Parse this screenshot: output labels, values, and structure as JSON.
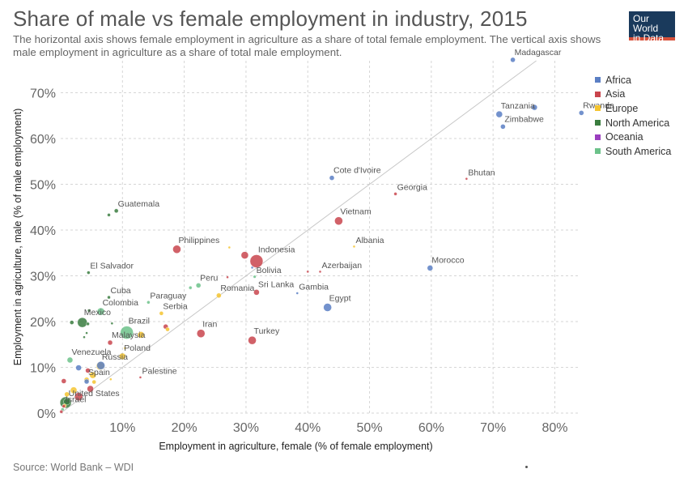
{
  "header": {
    "title": "Share of male vs female employment in industry, 2015",
    "subtitle": "The horizontal axis shows female employment in agriculture as a share of total female employment. The vertical axis shows male employment in agriculture as a share of total male employment.",
    "logo_line1": "Our World",
    "logo_line2": "in Data"
  },
  "footer": {
    "source": "Source: World Bank – WDI"
  },
  "colors": {
    "Africa": "#5b7fc4",
    "Asia": "#c9454d",
    "Europe": "#f4c430",
    "North America": "#3a7d3f",
    "Oceania": "#9b3fbf",
    "South America": "#6cc28a",
    "grid": "#d6d6d6",
    "diagonal": "#c8c8c8"
  },
  "chart_data": {
    "type": "scatter",
    "title": "Share of male vs female employment in industry, 2015",
    "xlabel": "Employment in agriculture, female (% of female employment)",
    "ylabel": "Employment in agriculture, male (% of male employment)",
    "xlim": [
      0,
      84
    ],
    "ylim": [
      0,
      77
    ],
    "x_ticks": [
      10,
      20,
      30,
      40,
      50,
      60,
      70,
      80
    ],
    "x_tick_labels": [
      "10%",
      "20%",
      "30%",
      "40%",
      "50%",
      "60%",
      "70%",
      "80%"
    ],
    "y_ticks": [
      0,
      10,
      20,
      30,
      40,
      50,
      60,
      70
    ],
    "y_tick_labels": [
      "0%",
      "10%",
      "20%",
      "30%",
      "40%",
      "50%",
      "60%",
      "70%"
    ],
    "grid": true,
    "diagonal_line": true,
    "legend_position": "top-right",
    "legend": [
      "Africa",
      "Asia",
      "Europe",
      "North America",
      "Oceania",
      "South America"
    ],
    "points": [
      {
        "label": "Madagascar",
        "region": "Africa",
        "x": 73.2,
        "y": 77.2,
        "r": 3
      },
      {
        "label": "Tanzania",
        "region": "Africa",
        "x": 71.0,
        "y": 65.3,
        "r": 4
      },
      {
        "label": "",
        "region": "Africa",
        "x": 76.7,
        "y": 66.8,
        "r": 3.5
      },
      {
        "label": "Rwanda",
        "region": "Africa",
        "x": 84.3,
        "y": 65.6,
        "r": 3
      },
      {
        "label": "Zimbabwe",
        "region": "Africa",
        "x": 71.6,
        "y": 62.6,
        "r": 3
      },
      {
        "label": "Bhutan",
        "region": "Asia",
        "x": 65.7,
        "y": 51.2,
        "r": 1.5
      },
      {
        "label": "Cote d'Ivoire",
        "region": "Africa",
        "x": 43.9,
        "y": 51.4,
        "r": 3
      },
      {
        "label": "Georgia",
        "region": "Asia",
        "x": 54.2,
        "y": 47.9,
        "r": 2
      },
      {
        "label": "Guatemala",
        "region": "North America",
        "x": 9.0,
        "y": 44.2,
        "r": 2.5
      },
      {
        "label": "",
        "region": "North America",
        "x": 7.8,
        "y": 43.3,
        "r": 2
      },
      {
        "label": "Vietnam",
        "region": "Asia",
        "x": 45.0,
        "y": 42.0,
        "r": 5
      },
      {
        "label": "Albania",
        "region": "Europe",
        "x": 47.5,
        "y": 36.4,
        "r": 1.5
      },
      {
        "label": "Philippines",
        "region": "Asia",
        "x": 18.8,
        "y": 35.8,
        "r": 5
      },
      {
        "label": "",
        "region": "Europe",
        "x": 27.3,
        "y": 36.2,
        "r": 1.5
      },
      {
        "label": "Indonesia",
        "region": "Asia",
        "x": 31.7,
        "y": 33.2,
        "r": 8
      },
      {
        "label": "",
        "region": "Asia",
        "x": 29.8,
        "y": 34.5,
        "r": 4.5
      },
      {
        "label": "Bolivia",
        "region": "South America",
        "x": 31.4,
        "y": 29.8,
        "r": 1.8
      },
      {
        "label": "",
        "region": "Africa",
        "x": 31.0,
        "y": 31.8,
        "r": 1.5
      },
      {
        "label": "Azerbaijan",
        "region": "Asia",
        "x": 42.0,
        "y": 30.9,
        "r": 1.5
      },
      {
        "label": "",
        "region": "Asia",
        "x": 40.0,
        "y": 30.9,
        "r": 1.5
      },
      {
        "label": "Morocco",
        "region": "Africa",
        "x": 59.8,
        "y": 31.7,
        "r": 3.5
      },
      {
        "label": "El Salvador",
        "region": "North America",
        "x": 4.5,
        "y": 30.7,
        "r": 2
      },
      {
        "label": "",
        "region": "Asia",
        "x": 27.0,
        "y": 29.7,
        "r": 1.5
      },
      {
        "label": "Peru",
        "region": "South America",
        "x": 22.3,
        "y": 27.9,
        "r": 3
      },
      {
        "label": "",
        "region": "South America",
        "x": 21.0,
        "y": 27.4,
        "r": 2
      },
      {
        "label": "Sri Lanka",
        "region": "Asia",
        "x": 31.7,
        "y": 26.4,
        "r": 3.5
      },
      {
        "label": "Gambia",
        "region": "Africa",
        "x": 38.3,
        "y": 26.2,
        "r": 1.5
      },
      {
        "label": "Romania",
        "region": "Europe",
        "x": 25.6,
        "y": 25.7,
        "r": 3
      },
      {
        "label": "Cuba",
        "region": "North America",
        "x": 7.8,
        "y": 25.3,
        "r": 2
      },
      {
        "label": "Paraguay",
        "region": "South America",
        "x": 14.2,
        "y": 24.2,
        "r": 2
      },
      {
        "label": "Egypt",
        "region": "Africa",
        "x": 43.2,
        "y": 23.1,
        "r": 5
      },
      {
        "label": "Colombia",
        "region": "South America",
        "x": 6.5,
        "y": 22.2,
        "r": 4.5
      },
      {
        "label": "",
        "region": "North America",
        "x": 4.6,
        "y": 22.4,
        "r": 2
      },
      {
        "label": "Serbia",
        "region": "Europe",
        "x": 16.3,
        "y": 21.8,
        "r": 2.5
      },
      {
        "label": "Mexico",
        "region": "North America",
        "x": 3.5,
        "y": 19.8,
        "r": 6
      },
      {
        "label": "",
        "region": "North America",
        "x": 1.8,
        "y": 19.8,
        "r": 2.5
      },
      {
        "label": "",
        "region": "North America",
        "x": 4.4,
        "y": 19.5,
        "r": 2
      },
      {
        "label": "",
        "region": "North America",
        "x": 8.3,
        "y": 19.6,
        "r": 1.5
      },
      {
        "label": "Brazil",
        "region": "South America",
        "x": 10.7,
        "y": 17.6,
        "r": 8
      },
      {
        "label": "",
        "region": "Asia",
        "x": 17.0,
        "y": 18.9,
        "r": 3
      },
      {
        "label": "",
        "region": "Europe",
        "x": 17.3,
        "y": 18.3,
        "r": 2.5
      },
      {
        "label": "",
        "region": "Europe",
        "x": 13.0,
        "y": 17.1,
        "r": 4
      },
      {
        "label": "Iran",
        "region": "Asia",
        "x": 22.7,
        "y": 17.4,
        "r": 5
      },
      {
        "label": "Turkey",
        "region": "Asia",
        "x": 31.0,
        "y": 15.9,
        "r": 5
      },
      {
        "label": "",
        "region": "North America",
        "x": 4.2,
        "y": 17.5,
        "r": 1.5
      },
      {
        "label": "",
        "region": "North America",
        "x": 3.8,
        "y": 16.6,
        "r": 1.5
      },
      {
        "label": "Malaysia",
        "region": "Asia",
        "x": 8.0,
        "y": 15.4,
        "r": 3
      },
      {
        "label": "Poland",
        "region": "Europe",
        "x": 10.0,
        "y": 12.4,
        "r": 4
      },
      {
        "label": "",
        "region": "Europe",
        "x": 10.4,
        "y": 14.2,
        "r": 1.5
      },
      {
        "label": "Venezuela",
        "region": "South America",
        "x": 1.5,
        "y": 11.6,
        "r": 3.5
      },
      {
        "label": "Russia",
        "region": "Europe",
        "x": 6.4,
        "y": 10.3,
        "r": 5
      },
      {
        "label": "",
        "region": "Africa",
        "x": 6.5,
        "y": 10.4,
        "r": 5
      },
      {
        "label": "",
        "region": "Africa",
        "x": 2.9,
        "y": 9.9,
        "r": 3.5
      },
      {
        "label": "",
        "region": "Asia",
        "x": 4.4,
        "y": 9.3,
        "r": 3
      },
      {
        "label": "Palestine",
        "region": "Asia",
        "x": 12.9,
        "y": 7.8,
        "r": 1.5
      },
      {
        "label": "",
        "region": "Europe",
        "x": 8.1,
        "y": 7.4,
        "r": 1.5
      },
      {
        "label": "Spain",
        "region": "Europe",
        "x": 4.2,
        "y": 7.3,
        "r": 3
      },
      {
        "label": "",
        "region": "Europe",
        "x": 5.2,
        "y": 8.3,
        "r": 4
      },
      {
        "label": "",
        "region": "Asia",
        "x": 0.5,
        "y": 7.0,
        "r": 3
      },
      {
        "label": "",
        "region": "Europe",
        "x": 5.4,
        "y": 6.8,
        "r": 2.5
      },
      {
        "label": "",
        "region": "Africa",
        "x": 4.2,
        "y": 6.9,
        "r": 3
      },
      {
        "label": "United States",
        "region": "North America",
        "x": 1.0,
        "y": 2.5,
        "r": 4
      },
      {
        "label": "",
        "region": "Asia",
        "x": 4.8,
        "y": 5.3,
        "r": 4
      },
      {
        "label": "",
        "region": "Asia",
        "x": 2.9,
        "y": 3.6,
        "r": 5
      },
      {
        "label": "",
        "region": "Europe",
        "x": 2.1,
        "y": 5.0,
        "r": 4
      },
      {
        "label": "",
        "region": "Europe",
        "x": 1.0,
        "y": 4.1,
        "r": 3
      },
      {
        "label": "Israel",
        "region": "Asia",
        "x": 0.5,
        "y": 1.5,
        "r": 2
      },
      {
        "label": "",
        "region": "North America",
        "x": 0.8,
        "y": 2.3,
        "r": 7
      },
      {
        "label": "",
        "region": "South America",
        "x": 0.3,
        "y": 0.8,
        "r": 2
      },
      {
        "label": "",
        "region": "Europe",
        "x": 0.6,
        "y": 1.6,
        "r": 2.5
      },
      {
        "label": "",
        "region": "Asia",
        "x": 0.1,
        "y": 0.3,
        "r": 2
      }
    ]
  }
}
